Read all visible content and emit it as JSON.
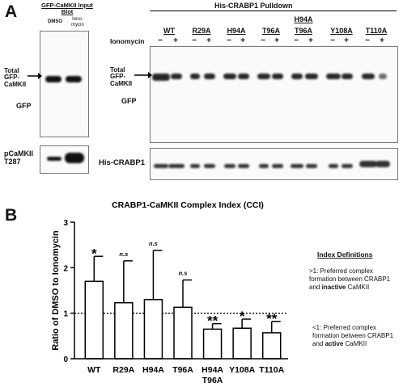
{
  "panelA": {
    "letter": "A",
    "input_blot_title": "GFP-CaMKII Input Blot",
    "input_dmso": "DMSO",
    "input_iono": "Iono-mycin",
    "pulldown_title": "His-CRABP1 Pulldown",
    "ionomycin_label": "Ionomycin",
    "mutants": [
      "WT",
      "R29A",
      "H94A",
      "T96A",
      "H94A\nT96A",
      "Y108A",
      "T110A"
    ],
    "signs": [
      "−",
      "+"
    ],
    "left_total_label": "Total GFP-CaMKII",
    "left_gfp_label": "GFP",
    "right_total_label": "Total GFP-CaMKII",
    "right_gfp_label": "GFP",
    "pcamkii_label": "pCaMKII T287",
    "his_label": "His-CRABP1"
  },
  "panelB": {
    "letter": "B",
    "index_defs_title": "Index Definitions",
    "def1_prefix": ">1: Preferred complex formation between CRABP1 and ",
    "def1_bold": "inactive",
    "def1_suffix": " CaMKII",
    "def2_prefix": "<1: Preferred complex formation between CRABP1 and ",
    "def2_bold": "active",
    "def2_suffix": " CaMKII"
  },
  "chart_data": {
    "type": "bar",
    "title": "CRABP1-CaMKII Complex Index (CCI)",
    "ylabel": "Ratio of DMSO to Ionomycin",
    "xlabel": "",
    "categories": [
      "WT",
      "R29A",
      "H94A",
      "T96A",
      "H94A T96A",
      "Y108A",
      "T110A"
    ],
    "values": [
      1.7,
      1.23,
      1.3,
      1.13,
      0.65,
      0.67,
      0.57
    ],
    "errors": [
      0.55,
      0.92,
      1.08,
      0.6,
      0.12,
      0.2,
      0.25
    ],
    "significance": [
      "*",
      "n.s",
      "n.s",
      "n.s",
      "**",
      "*",
      "**"
    ],
    "ylim": [
      0,
      3
    ],
    "yticks": [
      "0",
      "1",
      "2",
      "3"
    ],
    "reference_line": 1,
    "grid": false,
    "bar_color": "#ffffff",
    "edge_color": "#000000"
  }
}
